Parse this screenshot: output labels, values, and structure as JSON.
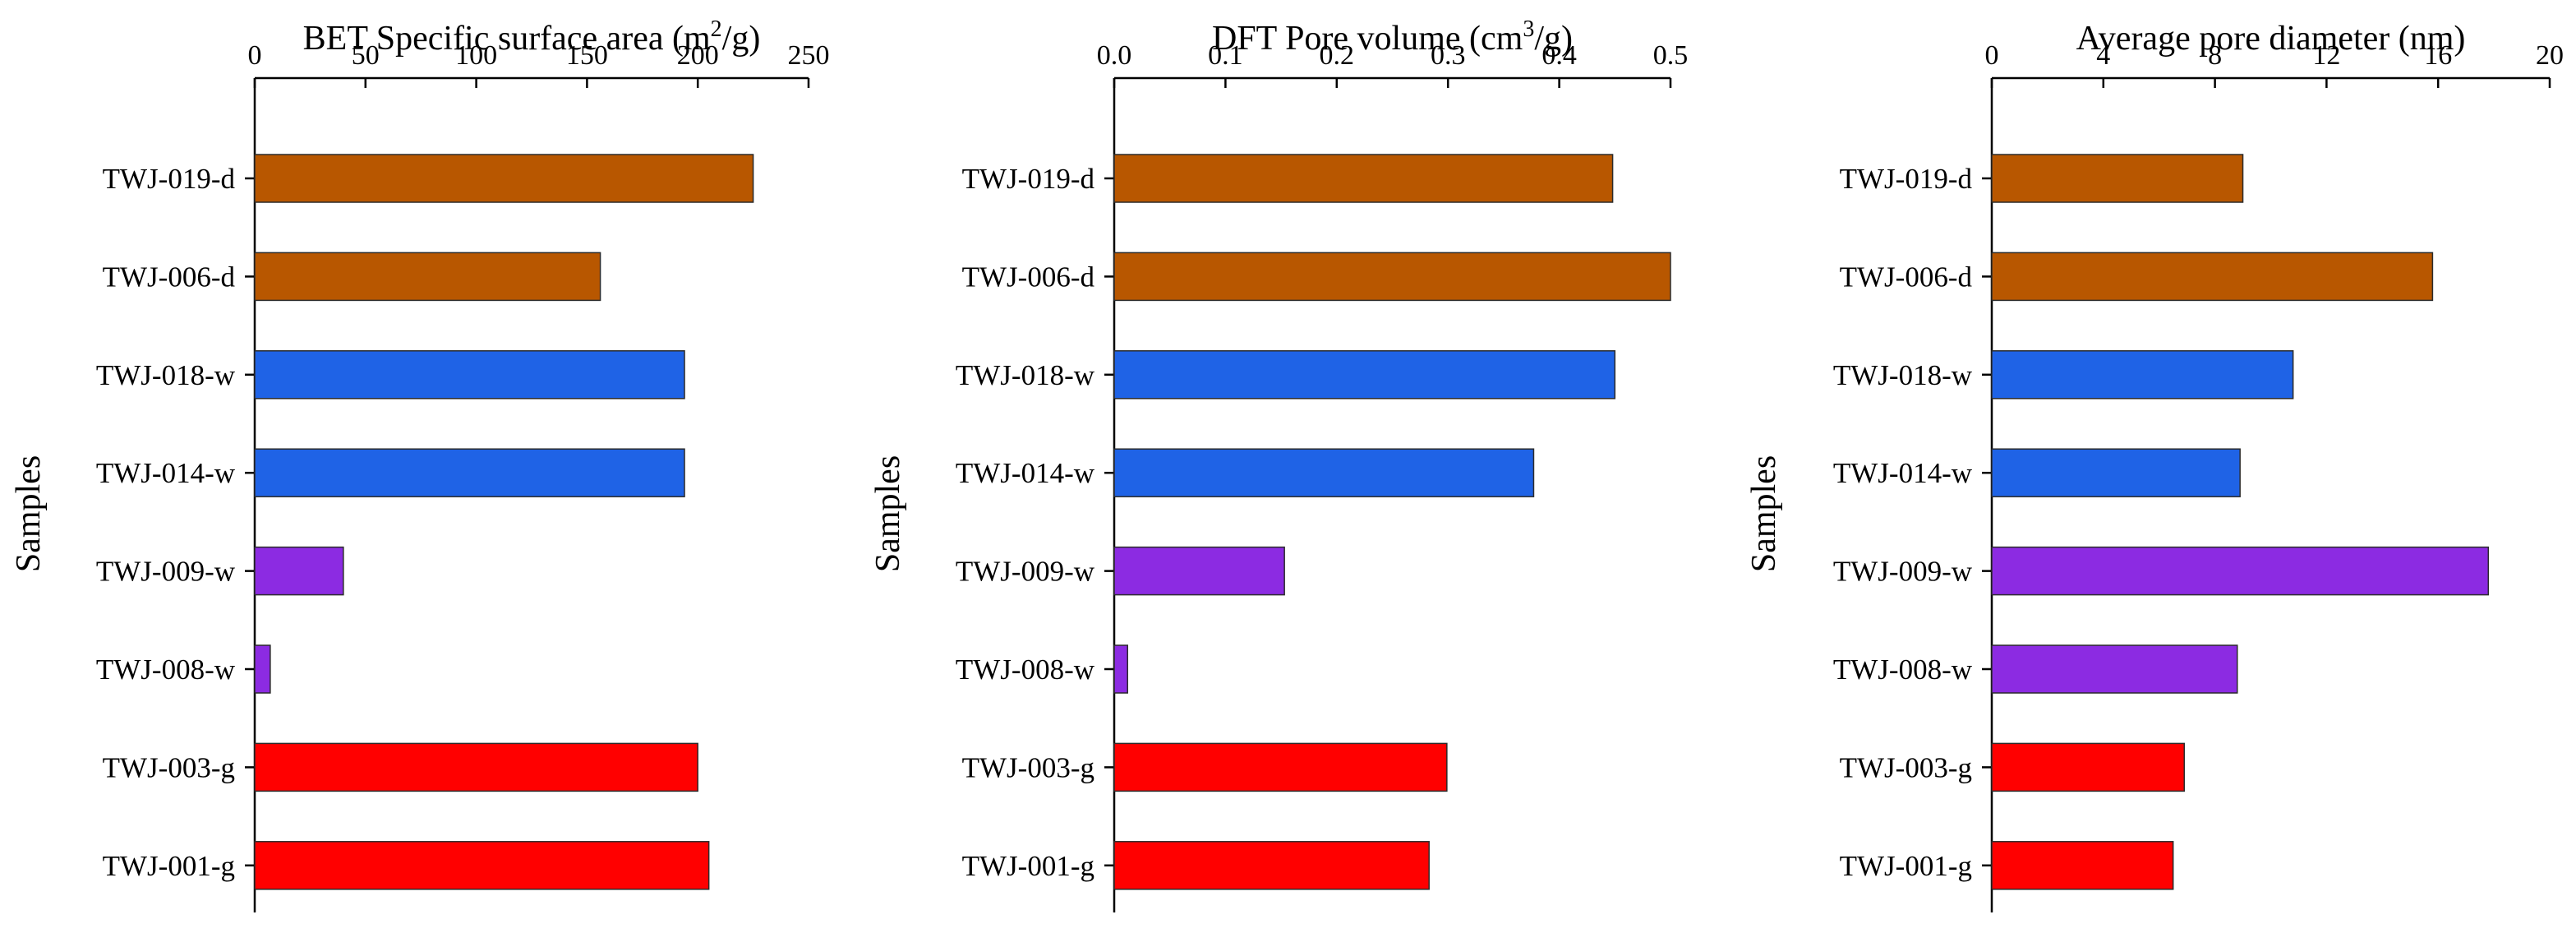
{
  "chart_data": [
    {
      "type": "bar",
      "orientation": "horizontal",
      "title": "BET Specific surface area (m²/g)",
      "title_parts": {
        "pre": "BET Specific surface area (m",
        "sup": "2",
        "post": "/g)"
      },
      "xlabel": "BET Specific surface area (m²/g)",
      "ylabel": "Samples",
      "xlim": [
        0,
        250
      ],
      "xticks": [
        0,
        50,
        100,
        150,
        200,
        250
      ],
      "categories": [
        "TWJ-019-d",
        "TWJ-006-d",
        "TWJ-018-w",
        "TWJ-014-w",
        "TWJ-009-w",
        "TWJ-008-w",
        "TWJ-003-g",
        "TWJ-001-g"
      ],
      "groups": [
        "d",
        "d",
        "w",
        "w",
        "w-purple",
        "w-purple",
        "g",
        "g"
      ],
      "values": [
        225,
        156,
        194,
        194,
        40,
        7,
        200,
        205
      ]
    },
    {
      "type": "bar",
      "orientation": "horizontal",
      "title": "DFT Pore volume (cm³/g)",
      "title_parts": {
        "pre": "DFT Pore volume (cm",
        "sup": "3",
        "post": "/g)"
      },
      "xlabel": "DFT Pore volume (cm³/g)",
      "ylabel": "Samples",
      "xlim": [
        0,
        0.5
      ],
      "xticks": [
        0.0,
        0.1,
        0.2,
        0.3,
        0.4,
        0.5
      ],
      "xtick_labels": [
        "0.0",
        "0.1",
        "0.2",
        "0.3",
        "0.4",
        "0.5"
      ],
      "categories": [
        "TWJ-019-d",
        "TWJ-006-d",
        "TWJ-018-w",
        "TWJ-014-w",
        "TWJ-009-w",
        "TWJ-008-w",
        "TWJ-003-g",
        "TWJ-001-g"
      ],
      "groups": [
        "d",
        "d",
        "w",
        "w",
        "w-purple",
        "w-purple",
        "g",
        "g"
      ],
      "values": [
        0.448,
        0.5,
        0.45,
        0.377,
        0.153,
        0.012,
        0.299,
        0.283
      ]
    },
    {
      "type": "bar",
      "orientation": "horizontal",
      "title": "Average pore diameter (nm)",
      "title_parts": {
        "pre": "Average pore diameter (nm)",
        "sup": "",
        "post": ""
      },
      "xlabel": "Average pore diameter (nm)",
      "ylabel": "Samples",
      "xlim": [
        0,
        20
      ],
      "xticks": [
        0,
        4,
        8,
        12,
        16,
        20
      ],
      "categories": [
        "TWJ-019-d",
        "TWJ-006-d",
        "TWJ-018-w",
        "TWJ-014-w",
        "TWJ-009-w",
        "TWJ-008-w",
        "TWJ-003-g",
        "TWJ-001-g"
      ],
      "groups": [
        "d",
        "d",
        "w",
        "w",
        "w-purple",
        "w-purple",
        "g",
        "g"
      ],
      "values": [
        9.0,
        15.8,
        10.8,
        8.9,
        17.8,
        8.8,
        6.9,
        6.5
      ]
    }
  ],
  "colors": {
    "d": "#b85700",
    "w": "#1f63e6",
    "w-purple": "#8c2be2",
    "g": "#ff0000"
  }
}
